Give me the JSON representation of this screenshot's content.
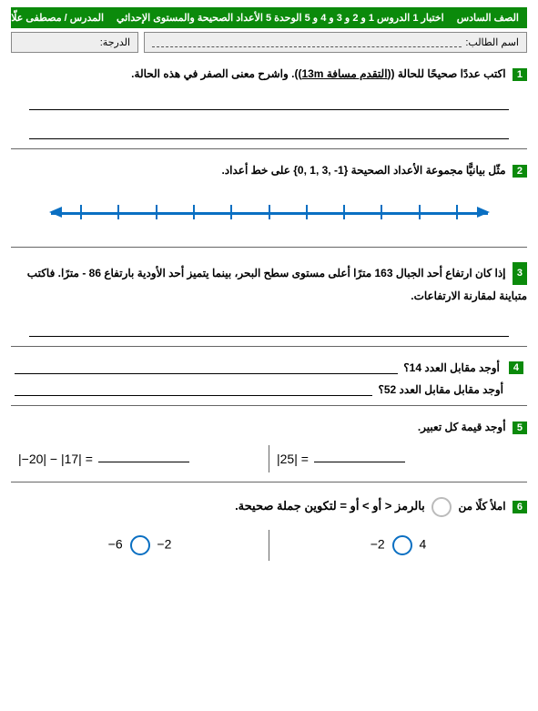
{
  "header": {
    "grade": "الصف السادس",
    "title": "اختبار 1 الدروس 1 و 2 و 3 و 4 و 5 الوحدة 5 الأعداد الصحيحة والمستوى الإحداثي",
    "teacher": "المدرس / مصطفى علّام"
  },
  "nameRow": {
    "student": "اسم الطالب:",
    "grade": "الدرجة:"
  },
  "q1": {
    "num": "1",
    "pre": "اكتب عددًا صحيحًا للحالة ((",
    "bold": "التقدم مسافة 13m",
    "post": ")). واشرح معنى الصفر في هذه الحالة."
  },
  "q2": {
    "num": "2",
    "text": "مثّل بيانيًّا مجموعة الأعداد الصحيحة  {1- ,3 ,1 ,0} على خط أعداد."
  },
  "numberline": {
    "tick_count": 11,
    "line_color": "#0a6fc2"
  },
  "q3": {
    "num": "3",
    "text": "إذا كان ارتفاع أحد الجبال 163 مترًا أعلى مستوى سطح البحر، بينما يتميز أحد الأودية بارتفاع 86 - مترًا. فاكتب متباينة لمقارنة الارتفاعات."
  },
  "q4": {
    "num": "4",
    "line1": "أوجد مقابل العدد 14؟",
    "line2": "أوجد مقابل مقابل العدد 52؟"
  },
  "q5": {
    "num": "5",
    "text": "أوجد قيمة كل تعبير."
  },
  "q5expr": {
    "left": "|25| =",
    "right": "|−20| − |17| ="
  },
  "q6": {
    "num": "6",
    "pre": "املأ كلًا من",
    "post": "بالرمز < أو > أو = لتكوين جملة صحيحة."
  },
  "q6pairs": {
    "a_left": "−2",
    "a_right": "4",
    "b_left": "−6",
    "b_right": "−2"
  }
}
